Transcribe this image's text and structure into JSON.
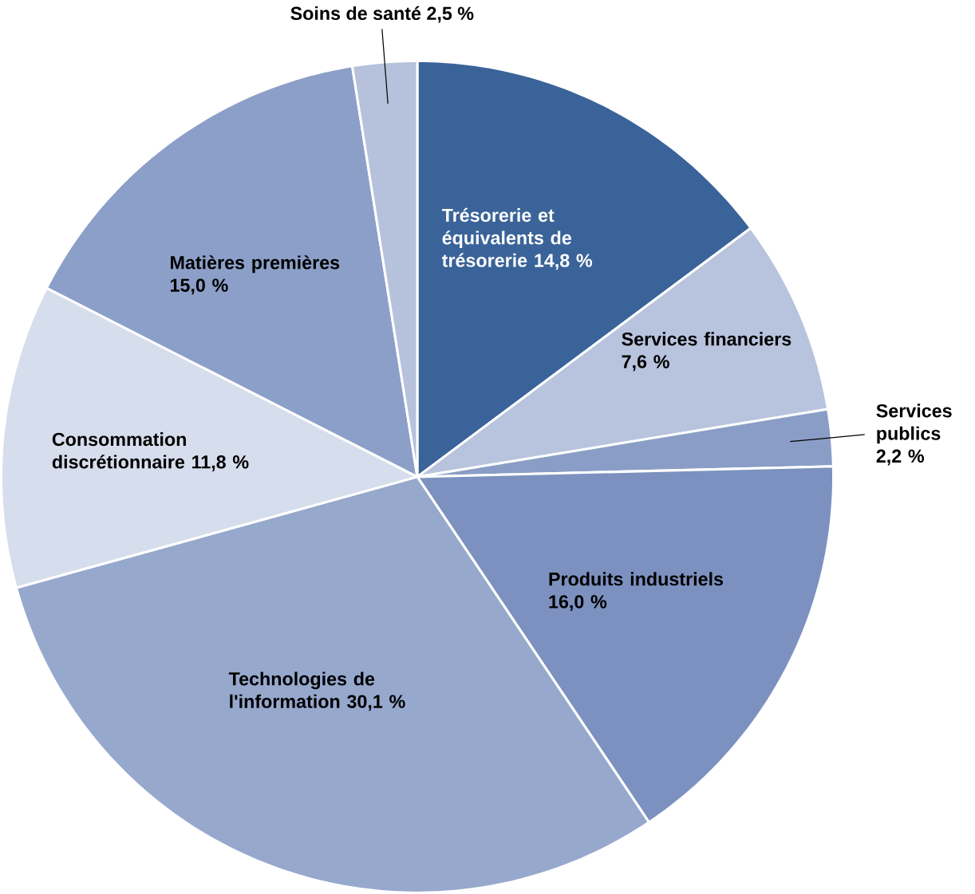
{
  "chart_data": {
    "type": "pie",
    "categories": [
      "Trésorerie et équivalents de trésorerie",
      "Services financiers",
      "Services publics",
      "Produits industriels",
      "Technologies de l'information",
      "Consommation discrétionnaire",
      "Matières premières",
      "Soins de santé"
    ],
    "values": [
      14.8,
      7.6,
      2.2,
      16.0,
      30.1,
      11.8,
      15.0,
      2.5
    ],
    "value_labels": [
      "14,8 %",
      "7,6 %",
      "2,2 %",
      "16,0 %",
      "30,1 %",
      "11,8 %",
      "15,0 %",
      "2,5 %"
    ],
    "colors": [
      "#3a6399",
      "#b8c3dd",
      "#8a9dc6",
      "#7c91bf",
      "#97a8cd",
      "#d6ddec",
      "#8c9fc8",
      "#b6c2dc"
    ]
  }
}
